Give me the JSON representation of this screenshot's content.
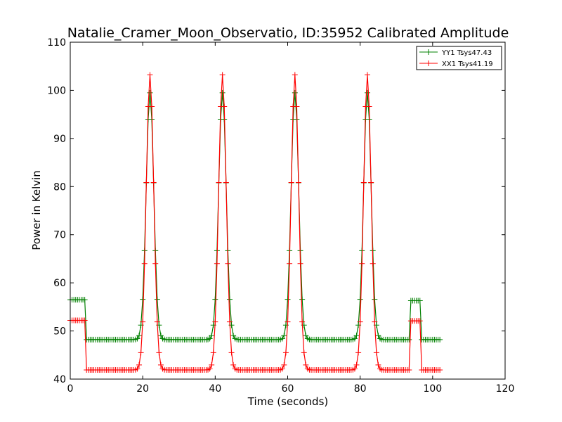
{
  "chart_data": {
    "type": "line",
    "title": "Natalie_Cramer_Moon_Observatio, ID:35952 Calibrated Amplitude",
    "xlabel": "Time (seconds)",
    "ylabel": "Power in Kelvin",
    "xlim": [
      0,
      120
    ],
    "ylim": [
      40,
      110
    ],
    "xticks": [
      0,
      20,
      40,
      60,
      80,
      100,
      120
    ],
    "yticks": [
      40,
      50,
      60,
      70,
      80,
      90,
      100,
      110
    ],
    "grid": false,
    "legend_position": "top-right",
    "peak_centers": [
      22,
      42,
      62,
      82
    ],
    "sample_step": 0.5,
    "series": [
      {
        "name": "YY1 Tsys47.43",
        "color": "#008000",
        "start_level": 56.5,
        "baseline": 48.2,
        "peak": 99.5,
        "cal_level": 56.3,
        "cal_window": [
          93.8,
          96.8
        ],
        "time_range": [
          0,
          102
        ]
      },
      {
        "name": "XX1 Tsys41.19",
        "color": "#ff0000",
        "start_level": 52.2,
        "baseline": 41.9,
        "peak": 103.2,
        "cal_level": 52.1,
        "cal_window": [
          93.8,
          96.8
        ],
        "time_range": [
          0,
          102
        ]
      }
    ]
  }
}
